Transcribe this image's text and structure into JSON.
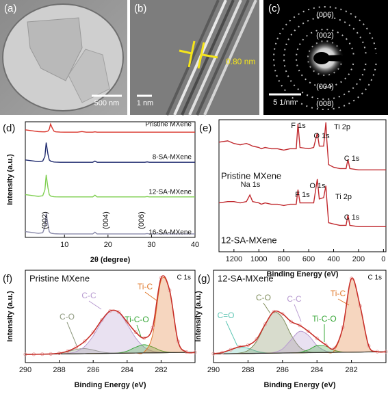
{
  "images": [
    {
      "label": "(a)",
      "scale_bar": "500 nm"
    },
    {
      "label": "(b)",
      "scale_bar": "1 nm",
      "annotation": "0.80 nm"
    },
    {
      "label": "(c)",
      "scale_bar": "5 1/nm",
      "annotations": [
        "(006)",
        "(002)",
        "(004)",
        "(008)"
      ]
    }
  ],
  "chart_data": [
    {
      "type": "line",
      "panel": "(d)",
      "xlabel": "2θ (degree)",
      "ylabel": "Intensity (a.u.)",
      "xlim": [
        1,
        40
      ],
      "ylim": [
        0,
        100
      ],
      "xticks": [
        10,
        20,
        30,
        40
      ],
      "x": [
        1,
        3,
        4,
        5,
        5.5,
        5.8,
        6.2,
        6.5,
        6.8,
        7.2,
        7.6,
        8,
        9,
        10,
        13,
        14,
        15,
        16.5,
        17,
        17.5,
        20,
        25,
        28.5,
        29,
        29.5,
        35,
        40
      ],
      "series": [
        {
          "name": "Pristine MXene",
          "color": "#d9342b",
          "values": [
            93,
            92,
            91.5,
            91.3,
            91.3,
            91.5,
            92,
            93.5,
            98,
            94.5,
            91.8,
            91.3,
            91.1,
            91,
            91,
            91.5,
            91,
            91,
            91.3,
            91,
            91,
            91,
            91,
            91,
            91,
            91,
            91
          ]
        },
        {
          "name": "8-SA-MXene",
          "color": "#1f2a6e",
          "values": [
            67,
            66,
            65.5,
            66,
            70,
            82,
            72,
            67,
            66,
            65.5,
            65.2,
            65.1,
            65,
            65,
            65,
            65,
            65,
            65,
            66,
            65,
            65,
            65,
            65,
            65.3,
            65,
            65,
            65
          ]
        },
        {
          "name": "12-SA-MXene",
          "color": "#7fcf50",
          "values": [
            37,
            36,
            35.5,
            36,
            41,
            54,
            43,
            37,
            35.8,
            35.4,
            35.2,
            35.1,
            35,
            35,
            35,
            35,
            35,
            35,
            36.5,
            35,
            35,
            35,
            35,
            35.3,
            35,
            35,
            35
          ]
        },
        {
          "name": "16-SA-MXene",
          "color": "#8a8aaa",
          "values": [
            5,
            4,
            3.5,
            4,
            9,
            21,
            11,
            5,
            3.8,
            3.4,
            3.2,
            3.1,
            3,
            3,
            3,
            3,
            3,
            3,
            4.5,
            3,
            3,
            3,
            3,
            3.3,
            3,
            3,
            3
          ]
        }
      ],
      "annotations": [
        "(002)",
        "(004)",
        "(006)"
      ]
    },
    {
      "type": "line",
      "panel": "(e)",
      "xlabel": "Binding Energy (eV)",
      "xlim": [
        1320,
        -20
      ],
      "ylim": [
        0,
        100
      ],
      "xticks": [
        1200,
        1000,
        800,
        600,
        400,
        200,
        0
      ],
      "x": [
        1320,
        1250,
        1200,
        1150,
        1100,
        1072,
        1050,
        1000,
        980,
        950,
        900,
        850,
        800,
        750,
        700,
        686,
        670,
        600,
        560,
        531,
        515,
        480,
        462,
        455,
        440,
        400,
        350,
        300,
        285,
        270,
        200,
        150,
        100,
        50,
        0,
        -20
      ],
      "series": [
        {
          "name": "Pristine MXene",
          "color": "#c0282d",
          "values": [
            83,
            84,
            82,
            81,
            82,
            81,
            80,
            79,
            78,
            79,
            78,
            78,
            77,
            78,
            78,
            97,
            79,
            78,
            79,
            90,
            80,
            80,
            98,
            85,
            66,
            64,
            63,
            63,
            70,
            63,
            62,
            62,
            62,
            62,
            62,
            62
          ]
        },
        {
          "name": "12-SA-MXene",
          "color": "#c0282d",
          "values": [
            37,
            38,
            38,
            37,
            38,
            43,
            38,
            37,
            36,
            37,
            36,
            36,
            35,
            36,
            36,
            47,
            37,
            37,
            37,
            55,
            40,
            41,
            50,
            40,
            22,
            21,
            20,
            20,
            28,
            20,
            19,
            19,
            19,
            19,
            19,
            19
          ]
        }
      ],
      "annotations": [
        "F 1s",
        "O 1s",
        "Ti 2p",
        "C 1s",
        "Na 1s",
        "F 1s",
        "O 1s",
        "Ti 2p",
        "C 1s"
      ]
    },
    {
      "type": "area",
      "panel": "(f)",
      "title": "Pristine MXene",
      "subtitle": "C 1s",
      "xlabel": "Binding Energy (eV)",
      "ylabel": "Intensity (a.u.)",
      "xlim": [
        290,
        280
      ],
      "ylim": [
        0,
        90
      ],
      "xticks": [
        290,
        288,
        286,
        284,
        282
      ],
      "x": [
        290,
        289.5,
        289,
        288.5,
        288,
        287.5,
        287,
        286.5,
        286,
        285.5,
        285,
        284.5,
        284,
        283.5,
        283,
        282.5,
        282,
        281.5,
        281,
        280.5,
        280
      ],
      "series": [
        {
          "name": "C-O",
          "color": "#8f9a80",
          "values": [
            0,
            0,
            0.01,
            0.13,
            0.68,
            2.19,
            4.25,
            4.95,
            3.46,
            1.45,
            0.37,
            0.06,
            0.01,
            0,
            0,
            0,
            0,
            0,
            0,
            0,
            0
          ]
        },
        {
          "name": "C-C",
          "color": "#b79ad0",
          "values": [
            0,
            0,
            0,
            0.01,
            0.08,
            0.47,
            2.11,
            7.06,
            17.27,
            31.05,
            40.98,
            39.73,
            28.3,
            14.8,
            5.68,
            1.6,
            0.33,
            0.05,
            0.01,
            0,
            0
          ]
        },
        {
          "name": "Ti-C-O",
          "color": "#3aa83a",
          "values": [
            0,
            0,
            0,
            0,
            0,
            0,
            0,
            0,
            0,
            0,
            0.03,
            0.35,
            2,
            5.65,
            8,
            5.65,
            2,
            0.35,
            0.03,
            0,
            0
          ]
        },
        {
          "name": "Ti-C",
          "color": "#e0782a",
          "values": [
            0,
            0,
            0,
            0,
            0,
            0,
            0,
            0,
            0,
            0,
            0,
            0,
            0,
            0.01,
            0.89,
            17.29,
            70.6,
            60.4,
            10.83,
            0.41,
            0
          ]
        }
      ],
      "background": [
        8,
        8.1,
        8.2,
        8.3,
        8.4,
        8.5,
        8.6,
        8.7,
        8.8,
        8.9,
        9,
        9.1,
        9.2,
        9.3,
        9.4,
        9.5,
        9.6,
        9.7,
        9.8,
        9.9,
        10
      ],
      "envelope": [
        8,
        8.1,
        8.21,
        8.44,
        9.16,
        11.16,
        14.96,
        20.71,
        29.53,
        41.4,
        50.38,
        49.24,
        39.51,
        29.76,
        23.97,
        34.04,
        82.53,
        70.5,
        20.67,
        10.31,
        10
      ],
      "envelope_color": "#c8302a"
    },
    {
      "type": "area",
      "panel": "(g)",
      "title": "12-SA-MXene",
      "subtitle": "C 1s",
      "xlabel": "Binding Energy (eV)",
      "ylabel": "Intensity (a.u.)",
      "xlim": [
        290,
        280
      ],
      "ylim": [
        0,
        85
      ],
      "xticks": [
        290,
        288,
        286,
        284,
        282
      ],
      "x": [
        290,
        289.5,
        289,
        288.5,
        288,
        287.5,
        287,
        286.5,
        286,
        285.5,
        285,
        284.5,
        284,
        283.5,
        283,
        282.5,
        282,
        281.5,
        281,
        280.5,
        280
      ],
      "series": [
        {
          "name": "C=O",
          "color": "#5fc6b4",
          "values": [
            0.17,
            1.12,
            3.64,
            5.92,
            4.81,
            1.95,
            0.4,
            0.04,
            0,
            0,
            0,
            0,
            0,
            0,
            0,
            0,
            0,
            0,
            0,
            0,
            0
          ]
        },
        {
          "name": "C-O",
          "color": "#7e8c5a",
          "values": [
            0,
            0,
            0.04,
            0.42,
            2.79,
            11.06,
            26.32,
            37.61,
            32.28,
            16.62,
            5.14,
            0.96,
            0.11,
            0.01,
            0,
            0,
            0,
            0,
            0,
            0,
            0
          ]
        },
        {
          "name": "C-C",
          "color": "#b79ad0",
          "values": [
            0,
            0,
            0,
            0,
            0,
            0,
            0.04,
            0.57,
            3.72,
            12.13,
            19.72,
            16.02,
            6.5,
            1.32,
            0.13,
            0.01,
            0,
            0,
            0,
            0,
            0
          ]
        },
        {
          "name": "Ti-C-O",
          "color": "#3aa83a",
          "values": [
            0,
            0,
            0,
            0,
            0,
            0,
            0,
            0,
            0,
            0.02,
            0.39,
            2.63,
            6.46,
            5.85,
            1.95,
            0.24,
            0.01,
            0,
            0,
            0,
            0
          ]
        },
        {
          "name": "Ti-C",
          "color": "#e0782a",
          "values": [
            0,
            0,
            0,
            0,
            0,
            0,
            0,
            0,
            0,
            0,
            0,
            0,
            0,
            0.02,
            1.6,
            22.74,
            67.84,
            42.46,
            5.57,
            0.15,
            0
          ]
        }
      ],
      "background": [
        8,
        8.1,
        8.2,
        8.3,
        8.4,
        8.5,
        8.6,
        8.7,
        8.8,
        8.9,
        9,
        9.1,
        9.2,
        9.3,
        9.4,
        9.5,
        9.6,
        9.7,
        9.8,
        9.9,
        10
      ],
      "envelope": [
        8.17,
        9.22,
        11.88,
        14.64,
        16,
        21.51,
        35.36,
        46.92,
        44.8,
        37.67,
        34.25,
        28.71,
        22.27,
        16.5,
        13.08,
        32.49,
        77.45,
        52.16,
        15.37,
        10.05,
        10
      ],
      "envelope_color": "#c8302a"
    }
  ]
}
